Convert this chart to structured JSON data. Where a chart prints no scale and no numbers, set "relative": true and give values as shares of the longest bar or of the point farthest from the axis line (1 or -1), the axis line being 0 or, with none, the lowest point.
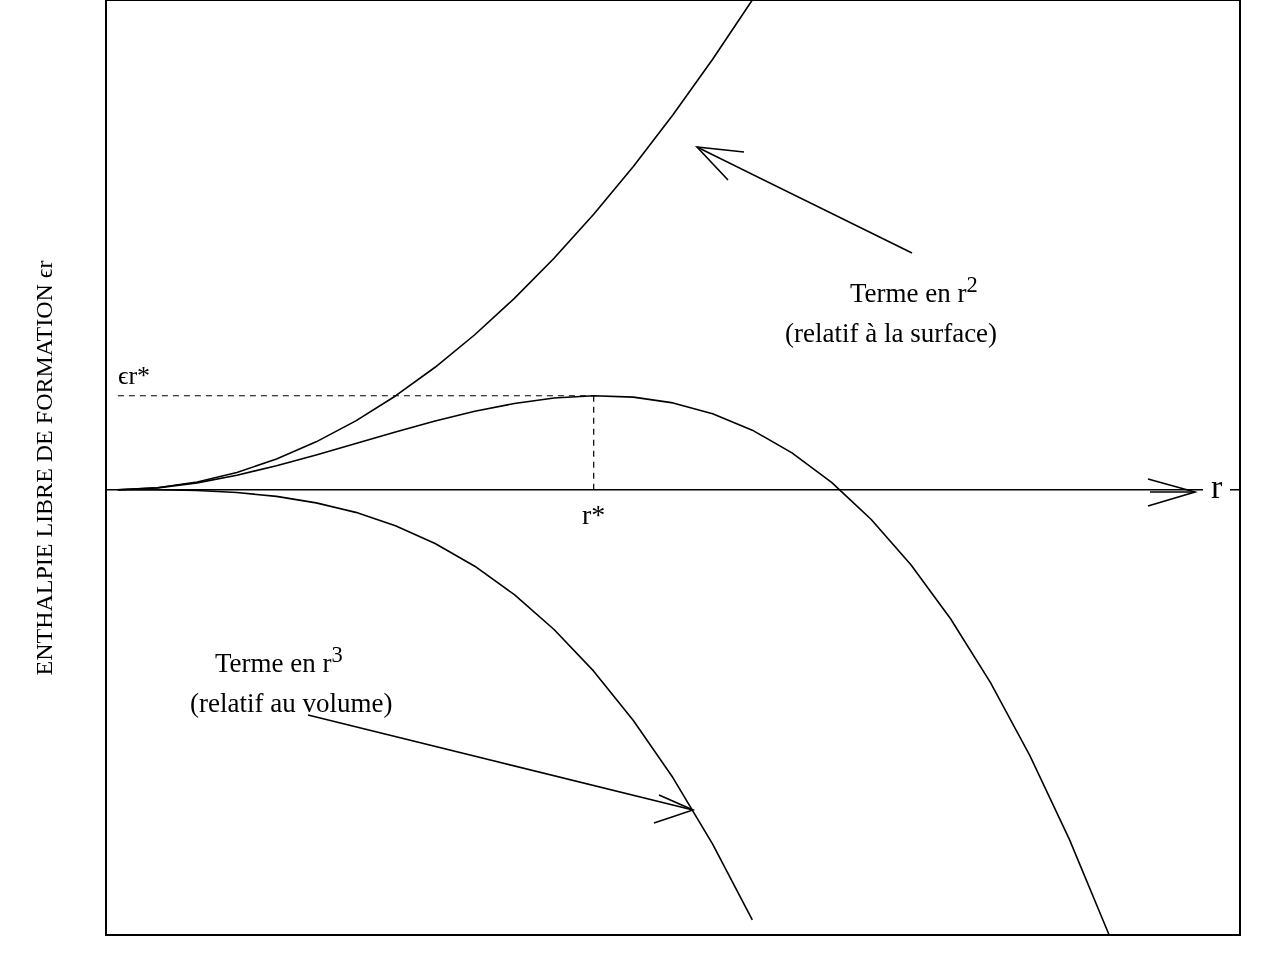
{
  "chart_data": {
    "type": "line",
    "relative": true,
    "xlabel": "r",
    "ylabel": "ENTHALPIE LIBRE DE FORMATION ϵr",
    "categories": [
      null,
      null,
      null,
      null,
      null,
      null,
      null,
      null,
      null,
      null,
      null,
      null,
      null,
      null,
      null,
      null,
      null,
      null,
      null,
      null,
      null,
      null,
      null,
      null,
      null,
      null,
      null,
      null,
      null
    ],
    "series": [
      {
        "color": "#000000",
        "values": [
          0,
          0.0039,
          0.0156,
          0.0352,
          0.0625,
          0.0977,
          0.1406,
          0.1914,
          0.25,
          0.3164,
          0.3906,
          0.4727,
          0.5625,
          0.6602,
          0.7656,
          0.8789,
          1,
          null,
          null,
          null,
          null,
          null,
          null,
          null,
          null,
          null,
          null,
          null,
          null
        ]
      },
      {
        "color": "#000000",
        "values": [
          0,
          -0.0002,
          -0.0017,
          -0.0058,
          -0.0137,
          -0.0269,
          -0.0463,
          -0.0736,
          -0.1098,
          -0.1563,
          -0.2145,
          -0.2855,
          -0.3706,
          -0.4712,
          -0.5884,
          -0.7238,
          -0.8784,
          null,
          null,
          null,
          null,
          null,
          null,
          null,
          null,
          null,
          null,
          null,
          null
        ]
      },
      {
        "color": "#000000",
        "values": [
          0,
          0.0037,
          0.0139,
          0.0294,
          0.0488,
          0.0708,
          0.0943,
          0.1178,
          0.1403,
          0.1601,
          0.1761,
          0.1872,
          0.1918,
          0.189,
          0.1772,
          0.1551,
          0.1216,
          0.0752,
          0.015,
          -0.0609,
          -0.1532,
          -0.2636,
          -0.3931,
          -0.543,
          -0.7147,
          -0.9094,
          null,
          null,
          null
        ]
      }
    ],
    "ref_lines": [
      {
        "axis": "y",
        "value": 0.1918,
        "label": "ϵr*",
        "line_style": "dashed"
      }
    ],
    "annotations": [
      "Terme en r$^{2}$",
      "(relatif à la surface)",
      "Terme en r$^{3}$",
      "(relatif au volume)",
      {
        "text": "r*",
        "y": 0.1918
      }
    ],
    "grid": false
  }
}
